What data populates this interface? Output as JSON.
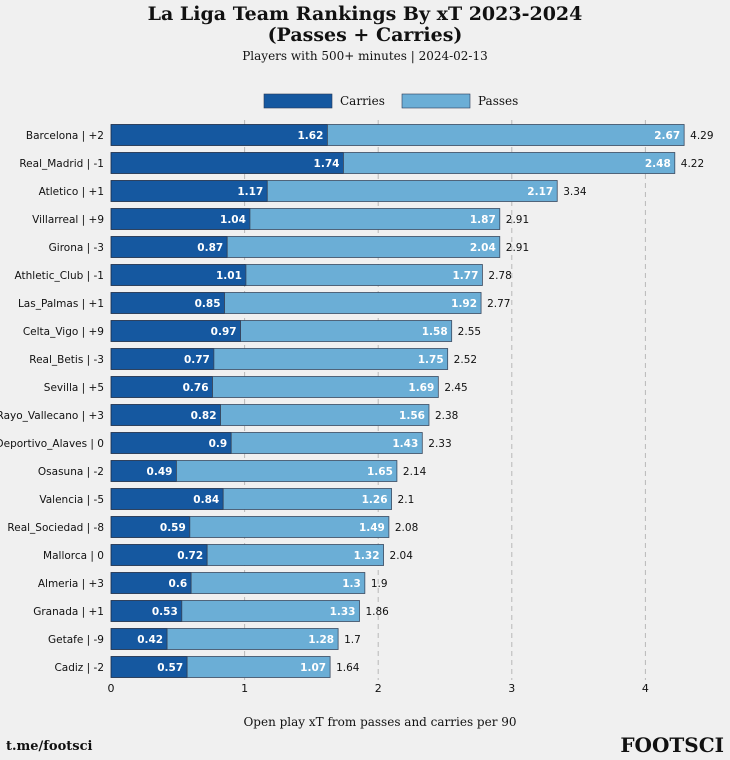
{
  "chart_data": {
    "type": "bar",
    "orientation": "horizontal",
    "stacked": true,
    "title": "La Liga Team Rankings By xT 2023-2024",
    "title_line2": "(Passes + Carries)",
    "subtitle": "Players with 500+ minutes | 2024-02-13",
    "xlabel": "Open play xT from passes and carries per 90",
    "xlim": [
      0,
      4.45
    ],
    "xticks": [
      "0",
      "1",
      "2",
      "3",
      "4"
    ],
    "grid": "vertical dashed",
    "legend_position": "top-center",
    "categories": [
      "Barcelona | +2",
      "Real_Madrid | -1",
      "Atletico | +1",
      "Villarreal | +9",
      "Girona | -3",
      "Athletic_Club | -1",
      "Las_Palmas | +1",
      "Celta_Vigo | +9",
      "Real_Betis | -3",
      "Sevilla | +5",
      "Rayo_Vallecano | +3",
      "Deportivo_Alaves | 0",
      "Osasuna | -2",
      "Valencia | -5",
      "Real_Sociedad | -8",
      "Mallorca | 0",
      "Almeria | +3",
      "Granada | +1",
      "Getafe | -9",
      "Cadiz | -2"
    ],
    "series": [
      {
        "name": "Carries",
        "color": "#1558a0",
        "values": [
          1.62,
          1.74,
          1.17,
          1.04,
          0.87,
          1.01,
          0.85,
          0.97,
          0.77,
          0.76,
          0.82,
          0.9,
          0.49,
          0.84,
          0.59,
          0.72,
          0.6,
          0.53,
          0.42,
          0.57
        ]
      },
      {
        "name": "Passes",
        "color": "#6baed6",
        "values": [
          2.67,
          2.48,
          2.17,
          1.87,
          2.04,
          1.77,
          1.92,
          1.58,
          1.75,
          1.69,
          1.56,
          1.43,
          1.65,
          1.26,
          1.49,
          1.32,
          1.3,
          1.33,
          1.28,
          1.07
        ]
      }
    ],
    "totals": [
      "4.29",
      "4.22",
      "3.34",
      "2.91",
      "2.91",
      "2.78",
      "2.77",
      "2.55",
      "2.52",
      "2.45",
      "2.38",
      "2.33",
      "2.14",
      "2.1",
      "2.08",
      "2.04",
      "1.9",
      "1.86",
      "1.7",
      "1.64"
    ]
  },
  "footer": {
    "left": "t.me/footsci",
    "right": "FOOTSCI"
  }
}
